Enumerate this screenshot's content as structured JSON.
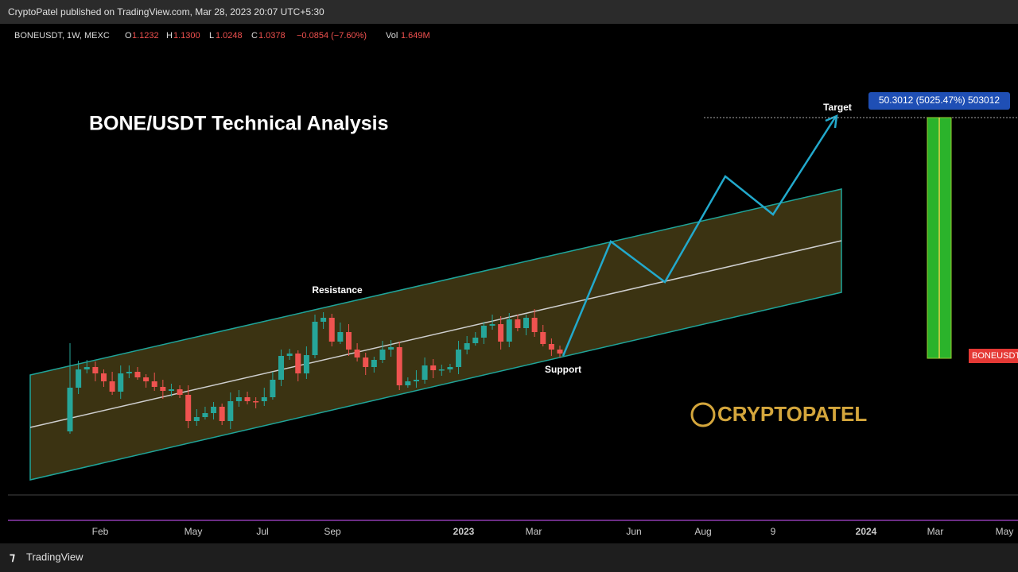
{
  "header": {
    "text": "CryptoPatel published on TradingView.com, Mar 28, 2023 20:07 UTC+5:30"
  },
  "legend": {
    "symbol": "BONEUSDT, 1W, MEXC",
    "open_label": "O",
    "open": "1.1232",
    "high_label": "H",
    "high": "1.1300",
    "low_label": "L",
    "low": "1.0248",
    "close_label": "C",
    "close": "1.0378",
    "change": "−0.0854 (−7.60%)",
    "volume_label": "Vol",
    "volume": "1.649M"
  },
  "title": "BONE/USDT Technical Analysis",
  "annotations": {
    "resistance": "Resistance",
    "support": "Support",
    "target": "Target"
  },
  "target_box": "50.3012 (5025.47%) 503012",
  "price_tag": "BONEUSDT",
  "x_axis": [
    "Feb",
    "May",
    "Jul",
    "Sep",
    "2023",
    "Mar",
    "Jun",
    "Aug",
    "9",
    "2024",
    "Mar",
    "May"
  ],
  "watermark": "CRYPTOPATEL",
  "footer": "TradingView"
}
